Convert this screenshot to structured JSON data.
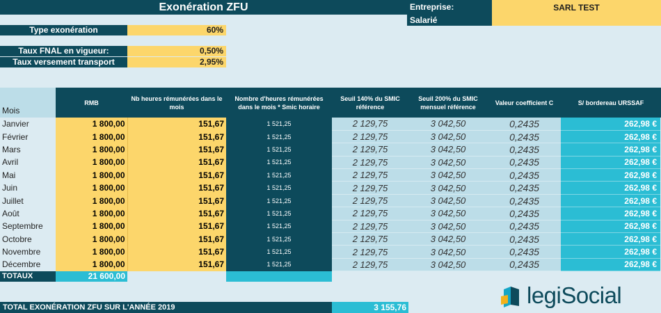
{
  "header": {
    "title": "Exonération ZFU",
    "entreprise_label": "Entreprise:",
    "entreprise_value": "SARL TEST",
    "salarie_label": "Salarié"
  },
  "params": {
    "type_exoneration_label": "Type exonération",
    "type_exoneration_value": "60%",
    "taux_fnal_label": "Taux FNAL en vigueur:",
    "taux_fnal_value": "0,50%",
    "taux_transport_label": "Taux versement transport",
    "taux_transport_value": "2,95%"
  },
  "table": {
    "headers": {
      "mois": "Mois",
      "rmb": "RMB",
      "nb_heures": "Nb heures rémunérées dans le mois",
      "nb_heures_smic": "Nombre d'heures rémunérées dans le mois * Smic horaire",
      "seuil140": "Seuil 140% du SMIC référence",
      "seuil200": "Seuil 200% du SMIC mensuel référence",
      "coef": "Valeur coefficient C",
      "urssaf": "S/ bordereau URSSAF"
    },
    "rows": [
      {
        "mois": "Janvier",
        "rmb": "1 800,00",
        "nb": "151,67",
        "nbs": "1 521,25",
        "s140": "2 129,75",
        "s200": "3 042,50",
        "coef": "0,2435",
        "urssaf": "262,98 €"
      },
      {
        "mois": "Février",
        "rmb": "1 800,00",
        "nb": "151,67",
        "nbs": "1 521,25",
        "s140": "2 129,75",
        "s200": "3 042,50",
        "coef": "0,2435",
        "urssaf": "262,98 €"
      },
      {
        "mois": "Mars",
        "rmb": "1 800,00",
        "nb": "151,67",
        "nbs": "1 521,25",
        "s140": "2 129,75",
        "s200": "3 042,50",
        "coef": "0,2435",
        "urssaf": "262,98 €"
      },
      {
        "mois": "Avril",
        "rmb": "1 800,00",
        "nb": "151,67",
        "nbs": "1 521,25",
        "s140": "2 129,75",
        "s200": "3 042,50",
        "coef": "0,2435",
        "urssaf": "262,98 €"
      },
      {
        "mois": "Mai",
        "rmb": "1 800,00",
        "nb": "151,67",
        "nbs": "1 521,25",
        "s140": "2 129,75",
        "s200": "3 042,50",
        "coef": "0,2435",
        "urssaf": "262,98 €"
      },
      {
        "mois": "Juin",
        "rmb": "1 800,00",
        "nb": "151,67",
        "nbs": "1 521,25",
        "s140": "2 129,75",
        "s200": "3 042,50",
        "coef": "0,2435",
        "urssaf": "262,98 €"
      },
      {
        "mois": "Juillet",
        "rmb": "1 800,00",
        "nb": "151,67",
        "nbs": "1 521,25",
        "s140": "2 129,75",
        "s200": "3 042,50",
        "coef": "0,2435",
        "urssaf": "262,98 €"
      },
      {
        "mois": "Août",
        "rmb": "1 800,00",
        "nb": "151,67",
        "nbs": "1 521,25",
        "s140": "2 129,75",
        "s200": "3 042,50",
        "coef": "0,2435",
        "urssaf": "262,98 €"
      },
      {
        "mois": "Septembre",
        "rmb": "1 800,00",
        "nb": "151,67",
        "nbs": "1 521,25",
        "s140": "2 129,75",
        "s200": "3 042,50",
        "coef": "0,2435",
        "urssaf": "262,98 €"
      },
      {
        "mois": "Octobre",
        "rmb": "1 800,00",
        "nb": "151,67",
        "nbs": "1 521,25",
        "s140": "2 129,75",
        "s200": "3 042,50",
        "coef": "0,2435",
        "urssaf": "262,98 €"
      },
      {
        "mois": "Novembre",
        "rmb": "1 800,00",
        "nb": "151,67",
        "nbs": "1 521,25",
        "s140": "2 129,75",
        "s200": "3 042,50",
        "coef": "0,2435",
        "urssaf": "262,98 €"
      },
      {
        "mois": "Décembre",
        "rmb": "1 800,00",
        "nb": "151,67",
        "nbs": "1 521,25",
        "s140": "2 129,75",
        "s200": "3 042,50",
        "coef": "0,2435",
        "urssaf": "262,98 €"
      }
    ],
    "totaux_label": "TOTAUX",
    "totaux_rmb": "21 600,00"
  },
  "footer": {
    "total_label": "TOTAL EXONÉRATION ZFU SUR L'ANNÉE 2019",
    "total_value": "3 155,76"
  },
  "logo": {
    "text_prefix": "legi",
    "text_suffix": "Social"
  },
  "colors": {
    "dark_teal": "#0d4a5b",
    "yellow": "#fcd66b",
    "light_blue": "#bcdde8",
    "cyan": "#2bbdd4",
    "background": "#dcebf2"
  }
}
